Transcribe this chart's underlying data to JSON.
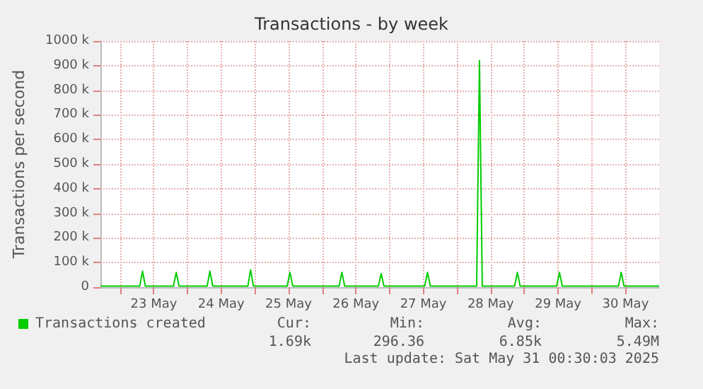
{
  "chart_data": {
    "type": "line",
    "title": "Transactions - by week",
    "ylabel": "Transactions per second",
    "xlim": [
      "2025-05-22T17:00",
      "2025-05-31T00:00"
    ],
    "xticks": [
      {
        "value": "2025-05-23T00:00",
        "label": null
      },
      {
        "value": "2025-05-23T12:00",
        "label": "23 May"
      },
      {
        "value": "2025-05-24T00:00",
        "label": null
      },
      {
        "value": "2025-05-24T12:00",
        "label": "24 May"
      },
      {
        "value": "2025-05-25T00:00",
        "label": null
      },
      {
        "value": "2025-05-25T12:00",
        "label": "25 May"
      },
      {
        "value": "2025-05-26T00:00",
        "label": null
      },
      {
        "value": "2025-05-26T12:00",
        "label": "26 May"
      },
      {
        "value": "2025-05-27T00:00",
        "label": null
      },
      {
        "value": "2025-05-27T12:00",
        "label": "27 May"
      },
      {
        "value": "2025-05-28T00:00",
        "label": null
      },
      {
        "value": "2025-05-28T12:00",
        "label": "28 May"
      },
      {
        "value": "2025-05-29T00:00",
        "label": null
      },
      {
        "value": "2025-05-29T12:00",
        "label": "29 May"
      },
      {
        "value": "2025-05-30T00:00",
        "label": null
      },
      {
        "value": "2025-05-30T12:00",
        "label": "30 May"
      }
    ],
    "ylim": [
      0,
      1000000
    ],
    "yticks": [
      0,
      {
        "value": 100000,
        "label": "100 k"
      },
      {
        "value": 200000,
        "label": "200 k"
      },
      {
        "value": 300000,
        "label": "300 k"
      },
      {
        "value": 400000,
        "label": "400 k"
      },
      {
        "value": 500000,
        "label": "500 k"
      },
      {
        "value": 600000,
        "label": "600 k"
      },
      {
        "value": 700000,
        "label": "700 k"
      },
      {
        "value": 800000,
        "label": "800 k"
      },
      {
        "value": 900000,
        "label": "900 k"
      },
      {
        "value": 1000000,
        "label": "1000 k"
      }
    ],
    "x": [
      "2025-05-22T17:00",
      "2025-05-23T07:00",
      "2025-05-23T08:00",
      "2025-05-23T09:00",
      "2025-05-23T19:00",
      "2025-05-23T20:00",
      "2025-05-23T21:00",
      "2025-05-24T07:00",
      "2025-05-24T08:00",
      "2025-05-24T09:00",
      "2025-05-24T21:30",
      "2025-05-24T22:30",
      "2025-05-24T23:30",
      "2025-05-25T11:30",
      "2025-05-25T12:30",
      "2025-05-25T13:30",
      "2025-05-26T06:00",
      "2025-05-26T07:00",
      "2025-05-26T08:00",
      "2025-05-26T20:00",
      "2025-05-26T21:00",
      "2025-05-26T22:00",
      "2025-05-27T12:30",
      "2025-05-27T13:30",
      "2025-05-27T14:30",
      "2025-05-28T07:00",
      "2025-05-28T08:00",
      "2025-05-28T09:00",
      "2025-05-28T20:30",
      "2025-05-28T21:30",
      "2025-05-28T22:30",
      "2025-05-29T11:30",
      "2025-05-29T12:30",
      "2025-05-29T13:30",
      "2025-05-30T09:30",
      "2025-05-30T10:30",
      "2025-05-30T11:30",
      "2025-05-31T00:00"
    ],
    "series": [
      {
        "name": "Transactions created",
        "color": "#00cc00",
        "values": [
          4000,
          4000,
          65000,
          4000,
          4000,
          60000,
          4000,
          4000,
          65000,
          4000,
          4000,
          70000,
          4000,
          4000,
          60000,
          4000,
          4000,
          60000,
          4000,
          4000,
          55000,
          4000,
          4000,
          60000,
          4000,
          4000,
          920000,
          4000,
          4000,
          60000,
          4000,
          4000,
          60000,
          4000,
          4000,
          60000,
          4000,
          4000
        ]
      }
    ],
    "legend": "bottom left",
    "grid": true,
    "marker": "none",
    "line_style": "solid",
    "annotations": [
      "Cur:",
      "Min:",
      "Avg:",
      "Max:",
      "1.69k",
      "296.36",
      "6.85k",
      "5.49M",
      "Last update: Sat May 31 00:30:03 2025"
    ]
  }
}
